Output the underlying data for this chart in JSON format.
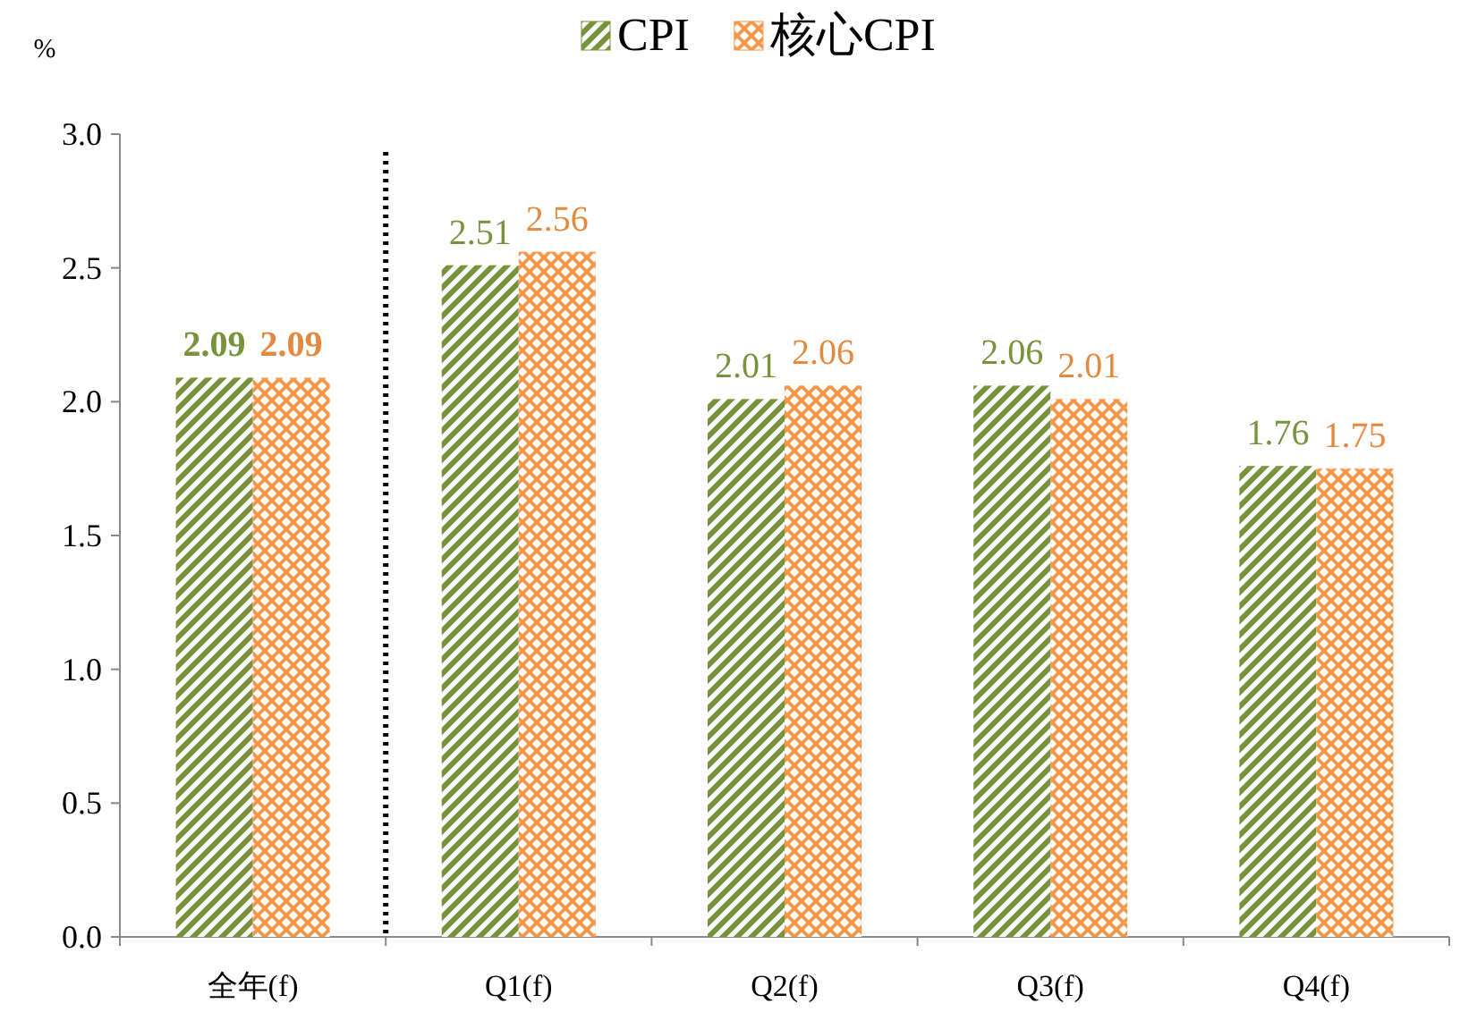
{
  "chart_data": {
    "type": "bar",
    "ylabel": "%",
    "categories": [
      "全年(f)",
      "Q1(f)",
      "Q2(f)",
      "Q3(f)",
      "Q4(f)"
    ],
    "series": [
      {
        "name": "CPI",
        "color": "#77933c",
        "values": [
          2.09,
          2.51,
          2.01,
          2.06,
          1.76
        ]
      },
      {
        "name": "核心CPI",
        "color": "#f79646",
        "values": [
          2.09,
          2.56,
          2.06,
          2.01,
          1.75
        ]
      }
    ],
    "ylim": [
      0,
      3
    ],
    "yticks": [
      {
        "value": 0,
        "label": "0.0"
      },
      0.5,
      {
        "value": 1,
        "label": "1.0"
      },
      1.5,
      {
        "value": 2,
        "label": "2.0"
      },
      2.5,
      {
        "value": 3,
        "label": "3.0"
      }
    ],
    "data_labels": true,
    "legend": "top"
  }
}
